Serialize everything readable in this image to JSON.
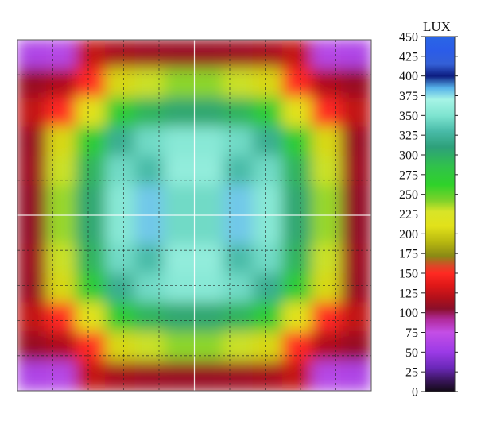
{
  "chart_data": {
    "type": "heatmap",
    "title": "",
    "xlabel": "",
    "ylabel": "",
    "colorbar": {
      "unit": "LUX",
      "range": [
        0,
        450
      ],
      "ticks": [
        450,
        425,
        400,
        375,
        350,
        325,
        300,
        275,
        250,
        225,
        200,
        175,
        150,
        125,
        100,
        75,
        50,
        25,
        0
      ],
      "stops": [
        {
          "value": 0,
          "color": "#120a16"
        },
        {
          "value": 15,
          "color": "#3c1660"
        },
        {
          "value": 30,
          "color": "#6a28b8"
        },
        {
          "value": 50,
          "color": "#9b3ae6"
        },
        {
          "value": 75,
          "color": "#c44ee6"
        },
        {
          "value": 92,
          "color": "#b02a9a"
        },
        {
          "value": 105,
          "color": "#8a0f2a"
        },
        {
          "value": 118,
          "color": "#b0101a"
        },
        {
          "value": 135,
          "color": "#e01818"
        },
        {
          "value": 150,
          "color": "#ff2a22"
        },
        {
          "value": 160,
          "color": "#d84a28"
        },
        {
          "value": 172,
          "color": "#8a8a14"
        },
        {
          "value": 190,
          "color": "#b8b810"
        },
        {
          "value": 210,
          "color": "#e2e21a"
        },
        {
          "value": 228,
          "color": "#d8e428"
        },
        {
          "value": 242,
          "color": "#7fd22a"
        },
        {
          "value": 262,
          "color": "#2fd22a"
        },
        {
          "value": 285,
          "color": "#30c24a"
        },
        {
          "value": 310,
          "color": "#2da07a"
        },
        {
          "value": 330,
          "color": "#49bba8"
        },
        {
          "value": 350,
          "color": "#7ee4d0"
        },
        {
          "value": 370,
          "color": "#a6f4e6"
        },
        {
          "value": 385,
          "color": "#56b2ea"
        },
        {
          "value": 400,
          "color": "#0c1c80"
        },
        {
          "value": 415,
          "color": "#3460d6"
        },
        {
          "value": 432,
          "color": "#2b5ce8"
        },
        {
          "value": 450,
          "color": "#2a66e6"
        }
      ]
    },
    "grid": true,
    "grid_divisions": 10,
    "symmetry": "fourfold",
    "z_quadrant": [
      [
        62,
        66,
        125,
        115,
        112,
        110
      ],
      [
        110,
        118,
        150,
        205,
        230,
        240
      ],
      [
        125,
        150,
        210,
        270,
        295,
        305
      ],
      [
        110,
        205,
        270,
        320,
        345,
        355
      ],
      [
        112,
        230,
        295,
        345,
        330,
        360
      ],
      [
        108,
        238,
        305,
        355,
        380,
        345
      ]
    ],
    "notes_visible": []
  }
}
